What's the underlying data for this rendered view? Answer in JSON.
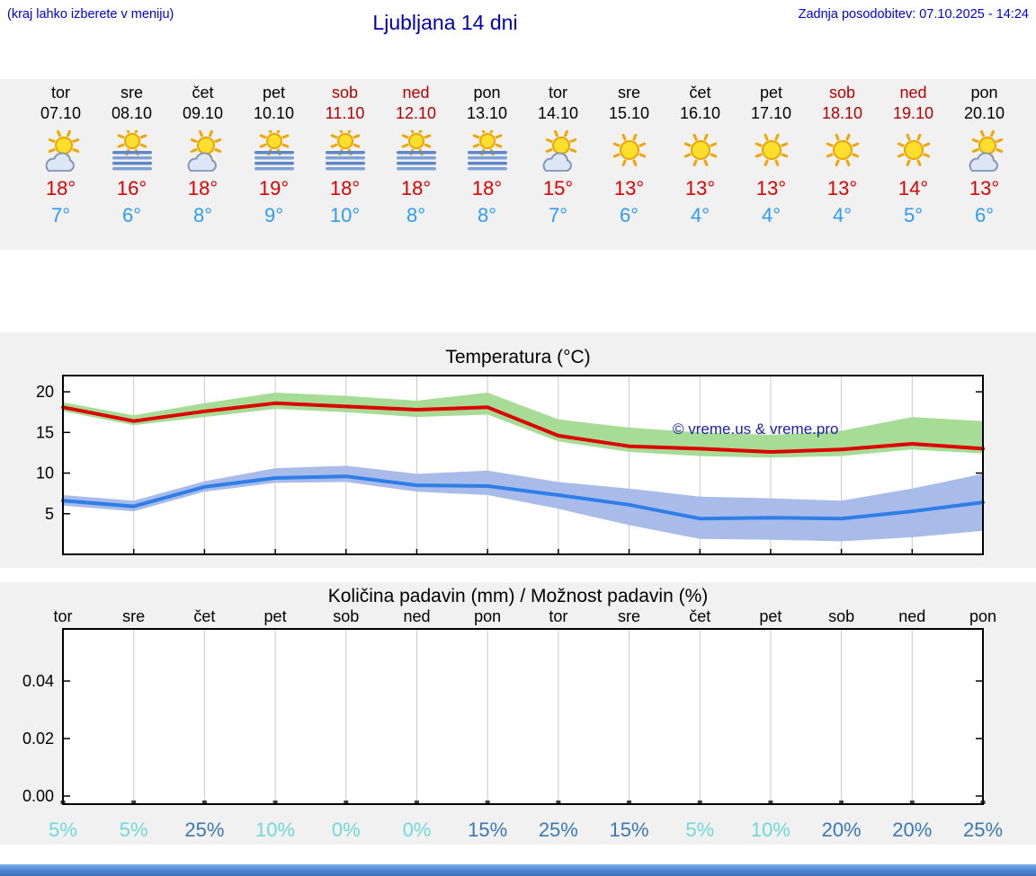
{
  "header": {
    "hint": "(kraj lahko izberete v meniju)",
    "title": "Ljubljana 14 dni",
    "last_update": "Zadnja posodobitev: 07.10.2025 - 14:24"
  },
  "colors": {
    "header_blue": "#0000e0",
    "title_blue": "#0000b0",
    "max_temp_red": "#dd0000",
    "min_temp_blue": "#2f9bf0",
    "weekend_red": "#b40000",
    "section_bg": "#f1f1f1",
    "watermark_blue": "#1c1caa",
    "bottom_bar_blue": "#4d84cf"
  },
  "forecast": {
    "days": [
      {
        "name": "tor",
        "date": "07.10",
        "weekend": false,
        "icon": "sun-cloud",
        "tmax": "18°",
        "tmin": "7°"
      },
      {
        "name": "sre",
        "date": "08.10",
        "weekend": false,
        "icon": "sun-fog",
        "tmax": "16°",
        "tmin": "6°"
      },
      {
        "name": "čet",
        "date": "09.10",
        "weekend": false,
        "icon": "sun-cloud",
        "tmax": "18°",
        "tmin": "8°"
      },
      {
        "name": "pet",
        "date": "10.10",
        "weekend": false,
        "icon": "sun-fog",
        "tmax": "19°",
        "tmin": "9°"
      },
      {
        "name": "sob",
        "date": "11.10",
        "weekend": true,
        "icon": "sun-fog",
        "tmax": "18°",
        "tmin": "10°"
      },
      {
        "name": "ned",
        "date": "12.10",
        "weekend": true,
        "icon": "sun-fog",
        "tmax": "18°",
        "tmin": "8°"
      },
      {
        "name": "pon",
        "date": "13.10",
        "weekend": false,
        "icon": "sun-fog",
        "tmax": "18°",
        "tmin": "8°"
      },
      {
        "name": "tor",
        "date": "14.10",
        "weekend": false,
        "icon": "sun-cloud",
        "tmax": "15°",
        "tmin": "7°"
      },
      {
        "name": "sre",
        "date": "15.10",
        "weekend": false,
        "icon": "sun",
        "tmax": "13°",
        "tmin": "6°"
      },
      {
        "name": "čet",
        "date": "16.10",
        "weekend": false,
        "icon": "sun",
        "tmax": "13°",
        "tmin": "4°"
      },
      {
        "name": "pet",
        "date": "17.10",
        "weekend": false,
        "icon": "sun",
        "tmax": "13°",
        "tmin": "4°"
      },
      {
        "name": "sob",
        "date": "18.10",
        "weekend": true,
        "icon": "sun",
        "tmax": "13°",
        "tmin": "4°"
      },
      {
        "name": "ned",
        "date": "19.10",
        "weekend": true,
        "icon": "sun",
        "tmax": "14°",
        "tmin": "5°"
      },
      {
        "name": "pon",
        "date": "20.10",
        "weekend": false,
        "icon": "sun-cloud",
        "tmax": "13°",
        "tmin": "6°"
      }
    ]
  },
  "chart_data": [
    {
      "type": "line",
      "title": "Temperatura (°C)",
      "watermark": "© vreme.us & vreme.pro",
      "x_labels": [
        "tor",
        "sre",
        "čet",
        "pet",
        "sob",
        "ned",
        "pon",
        "tor",
        "sre",
        "čet",
        "pet",
        "sob",
        "ned",
        "pon"
      ],
      "ylim": [
        0,
        22
      ],
      "yticks": [
        5,
        10,
        15,
        20
      ],
      "grid": "vertical",
      "legend": "none",
      "series": [
        {
          "name": "max-temperature",
          "color": "#dd0000",
          "band_color": "#a6dc96",
          "values": [
            18.1,
            16.4,
            17.6,
            18.6,
            18.2,
            17.8,
            18.1,
            14.6,
            13.3,
            13.0,
            12.6,
            12.9,
            13.6,
            13.0
          ],
          "band_upper": [
            18.7,
            17.1,
            18.6,
            19.9,
            19.5,
            18.9,
            19.9,
            16.6,
            15.6,
            15.0,
            14.7,
            15.2,
            16.9,
            16.4
          ],
          "band_lower": [
            17.6,
            15.9,
            16.9,
            17.9,
            17.5,
            16.9,
            17.2,
            13.9,
            12.6,
            12.1,
            11.9,
            12.1,
            12.9,
            12.4
          ]
        },
        {
          "name": "min-temperature",
          "color": "#2d7ee6",
          "band_color": "#a9bce9",
          "values": [
            6.6,
            5.9,
            8.3,
            9.4,
            9.6,
            8.5,
            8.4,
            7.3,
            6.1,
            4.4,
            4.5,
            4.4,
            5.3,
            6.4
          ],
          "band_upper": [
            7.3,
            6.6,
            9.0,
            10.6,
            10.9,
            9.9,
            10.3,
            8.9,
            8.1,
            7.1,
            6.9,
            6.6,
            8.1,
            9.9
          ],
          "band_lower": [
            6.0,
            5.3,
            7.7,
            8.8,
            8.9,
            7.7,
            7.3,
            5.6,
            3.6,
            1.9,
            1.8,
            1.6,
            2.1,
            2.9
          ]
        }
      ]
    },
    {
      "type": "bar",
      "title": "Količina padavin (mm) / Možnost padavin (%)",
      "day_labels": [
        "tor",
        "sre",
        "čet",
        "pet",
        "sob",
        "ned",
        "pon",
        "tor",
        "sre",
        "čet",
        "pet",
        "sob",
        "ned",
        "pon"
      ],
      "ylim": [
        0,
        0.058
      ],
      "yticks": [
        0,
        0.02,
        0.04
      ],
      "values_mm": [
        0,
        0,
        0,
        0,
        0,
        0,
        0,
        0,
        0,
        0,
        0,
        0,
        0,
        0
      ],
      "probabilities": [
        5,
        5,
        25,
        10,
        0,
        0,
        15,
        25,
        15,
        5,
        10,
        20,
        20,
        25
      ],
      "prob_low_threshold": 10,
      "prob_low_color": "#6fd8d8",
      "prob_high_color": "#3a78b5"
    }
  ]
}
